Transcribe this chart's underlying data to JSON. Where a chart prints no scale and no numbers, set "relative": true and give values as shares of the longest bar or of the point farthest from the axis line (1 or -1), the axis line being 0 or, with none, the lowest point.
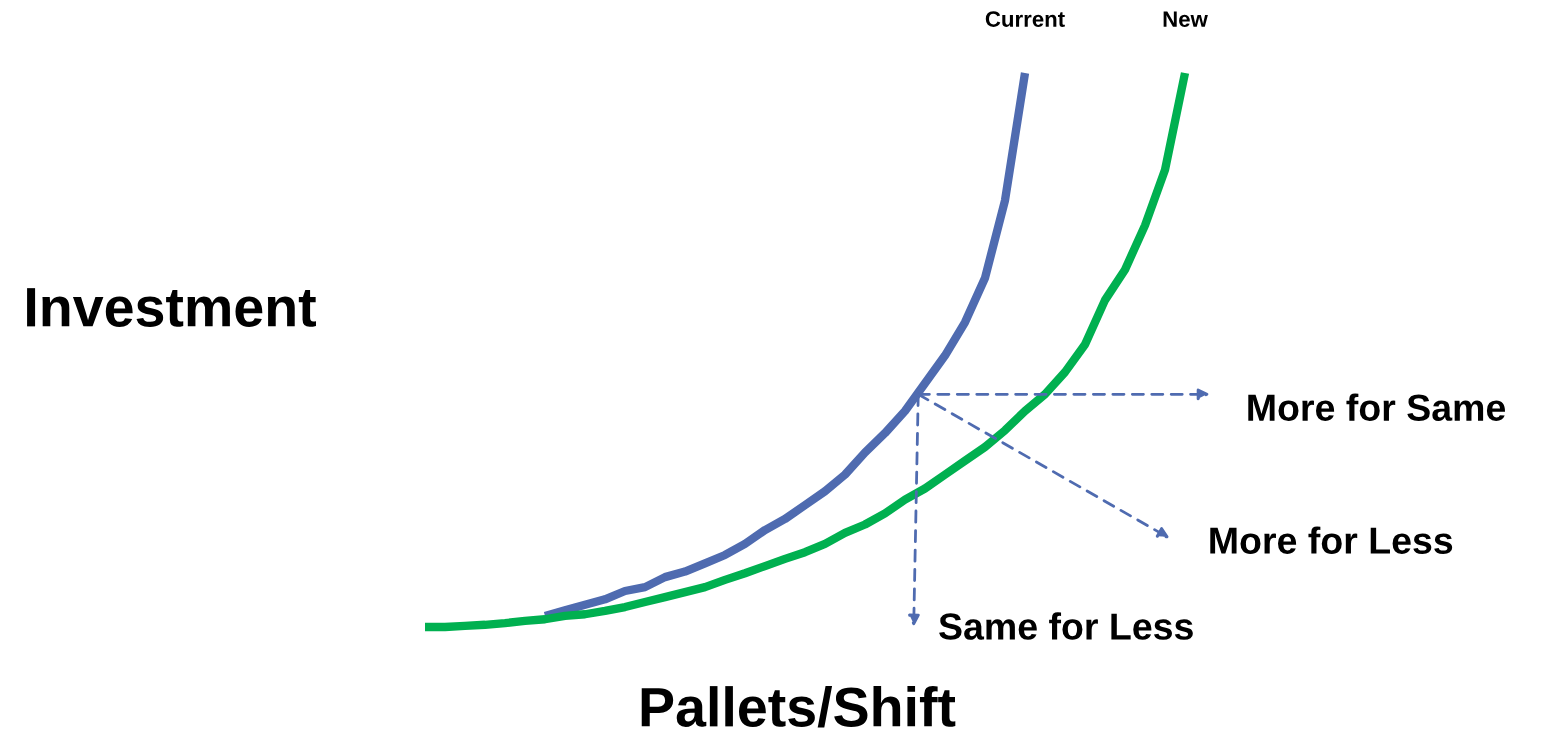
{
  "chart_data": {
    "type": "line",
    "relative": true,
    "xlabel": "Pallets/Shift",
    "ylabel": "Investment",
    "legend": false,
    "marker": "none",
    "line_style": "solid",
    "categories": [
      null,
      null,
      null,
      null,
      null,
      null,
      null,
      null,
      null,
      null,
      null,
      null,
      null,
      null,
      null,
      null,
      null,
      null,
      null,
      null,
      null,
      null,
      null,
      null,
      null,
      null,
      null,
      null,
      null,
      null,
      null,
      null,
      null,
      null,
      null,
      null,
      null,
      null,
      null
    ],
    "series": [
      {
        "name": "Current",
        "color": "#4f6bb0",
        "values": [
          null,
          null,
          null,
          null,
          null,
          null,
          0.02,
          0.03,
          0.04,
          0.05,
          0.065,
          0.072,
          0.09,
          0.1,
          0.115,
          0.13,
          0.15,
          0.175,
          0.195,
          0.22,
          0.245,
          0.275,
          0.315,
          0.35,
          0.39,
          0.44,
          0.49,
          0.55,
          0.63,
          0.77,
          1.0,
          null,
          null,
          null,
          null,
          null,
          null,
          null,
          null
        ]
      },
      {
        "name": "New",
        "color": "#00b050",
        "values": [
          0.0,
          0.0,
          0.002,
          0.004,
          0.007,
          0.011,
          0.014,
          0.02,
          0.023,
          0.029,
          0.036,
          0.045,
          0.054,
          0.063,
          0.072,
          0.085,
          0.097,
          0.11,
          0.123,
          0.135,
          0.15,
          0.17,
          0.185,
          0.205,
          0.23,
          0.25,
          0.275,
          0.3,
          0.325,
          0.355,
          0.39,
          0.42,
          0.46,
          0.51,
          0.59,
          0.645,
          0.725,
          0.825,
          1.0
        ]
      }
    ],
    "annotations": [
      "More for Same",
      "More for Less",
      "Same for Less"
    ]
  }
}
